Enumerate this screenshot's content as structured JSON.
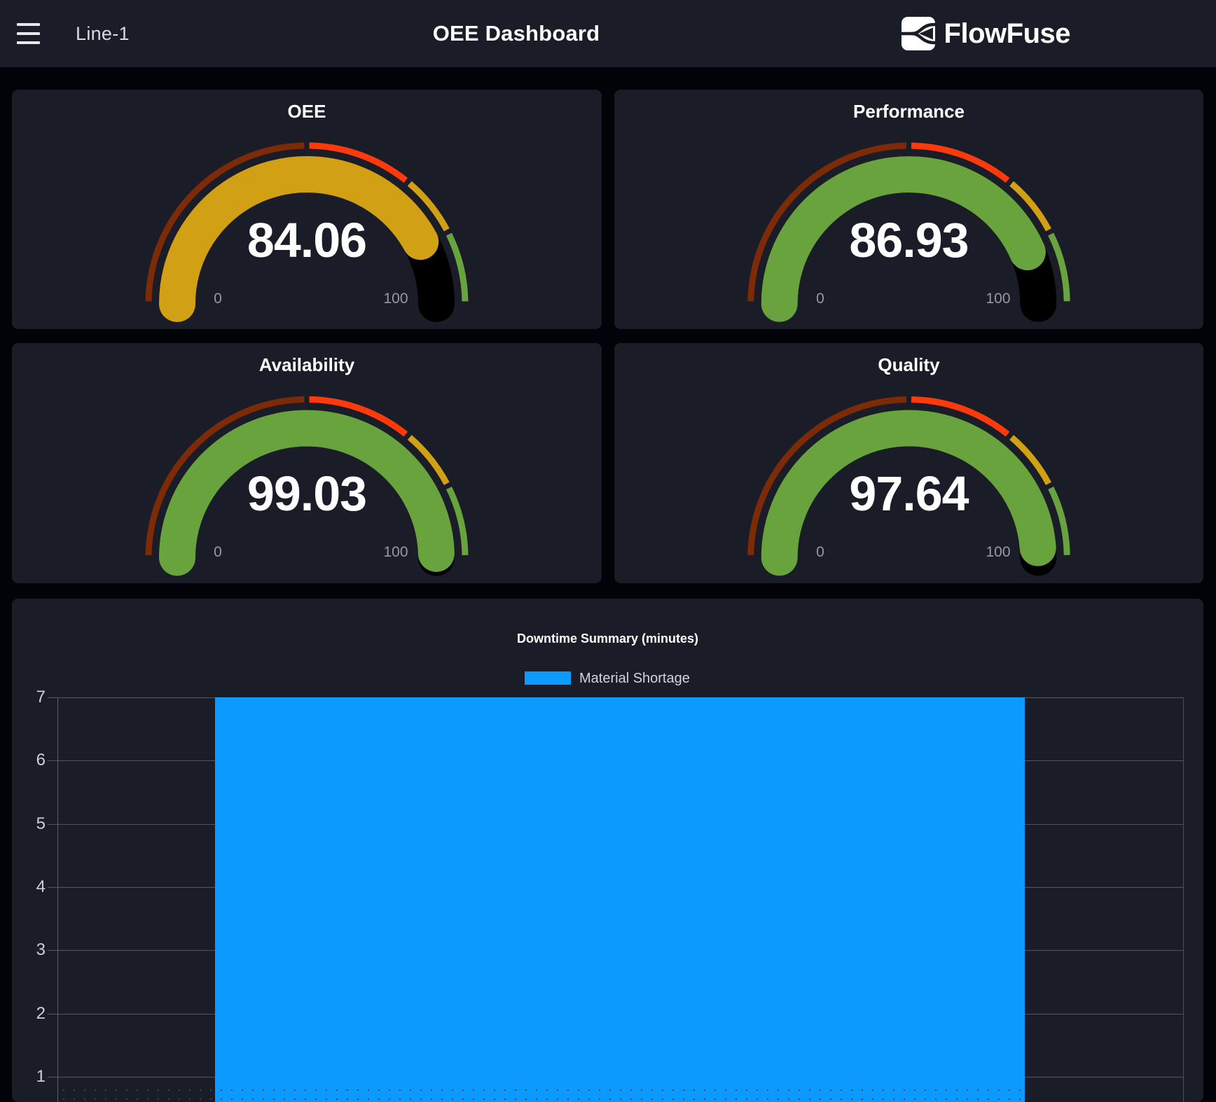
{
  "header": {
    "menu": "Line-1",
    "title": "OEE Dashboard",
    "brand": "FlowFuse"
  },
  "gauges": [
    {
      "id": "oee",
      "title": "OEE",
      "value": 84.06,
      "min": 0,
      "max": 100,
      "fill": "#d2a014"
    },
    {
      "id": "performance",
      "title": "Performance",
      "value": 86.93,
      "min": 0,
      "max": 100,
      "fill": "#69a33d"
    },
    {
      "id": "availability",
      "title": "Availability",
      "value": 99.03,
      "min": 0,
      "max": 100,
      "fill": "#69a33d"
    },
    {
      "id": "quality",
      "title": "Quality",
      "value": 97.64,
      "min": 0,
      "max": 100,
      "fill": "#69a33d"
    }
  ],
  "gauge_segments": [
    {
      "from": 0,
      "to": 50,
      "color": "#7d2a07"
    },
    {
      "from": 50,
      "to": 72,
      "color": "#fd3a0c"
    },
    {
      "from": 72,
      "to": 85,
      "color": "#d2a014"
    },
    {
      "from": 85,
      "to": 100,
      "color": "#69a33d"
    }
  ],
  "gauge_track_color": "#000000",
  "chart_data": {
    "type": "bar",
    "title": "Downtime Summary (minutes)",
    "series": [
      {
        "name": "Material Shortage",
        "color": "#0d9aff",
        "values": [
          7
        ]
      }
    ],
    "y_ticks": [
      7,
      6,
      5,
      4,
      3,
      2,
      1
    ],
    "ylim": [
      0,
      7
    ],
    "grid": true,
    "legend_position": "top",
    "x_labels_visible": false
  }
}
